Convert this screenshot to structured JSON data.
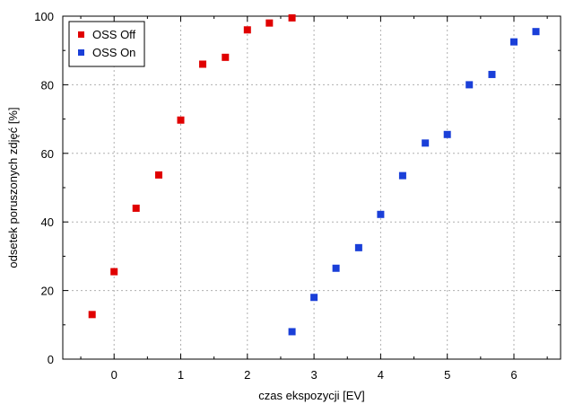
{
  "chart_data": {
    "type": "scatter",
    "title": "",
    "xlabel": "czas ekspozycji [EV]",
    "ylabel": "odsetek poruszonych zdjęć [%]",
    "xlim": [
      -0.77,
      6.7
    ],
    "ylim": [
      0,
      100
    ],
    "x_ticks": [
      0,
      1,
      2,
      3,
      4,
      5,
      6
    ],
    "y_ticks": [
      0,
      20,
      40,
      60,
      80,
      100
    ],
    "grid": true,
    "legend_position": "top-left",
    "series": [
      {
        "name": "OSS Off",
        "color": "#e00000",
        "points": [
          [
            -0.33,
            13
          ],
          [
            0,
            25.5
          ],
          [
            0.33,
            44
          ],
          [
            0.67,
            53.7
          ],
          [
            1,
            69.7
          ],
          [
            1.33,
            86
          ],
          [
            1.67,
            88
          ],
          [
            2,
            96
          ],
          [
            2.33,
            98
          ],
          [
            2.67,
            99.5
          ]
        ]
      },
      {
        "name": "OSS On",
        "color": "#1a3fd8",
        "points": [
          [
            2.67,
            8
          ],
          [
            3,
            18
          ],
          [
            3.33,
            26.5
          ],
          [
            3.67,
            32.5
          ],
          [
            4,
            42.2
          ],
          [
            4.33,
            53.5
          ],
          [
            4.67,
            63
          ],
          [
            5,
            65.5
          ],
          [
            5.33,
            80
          ],
          [
            5.67,
            83
          ],
          [
            6,
            92.5
          ],
          [
            6.33,
            95.5
          ]
        ]
      }
    ]
  }
}
